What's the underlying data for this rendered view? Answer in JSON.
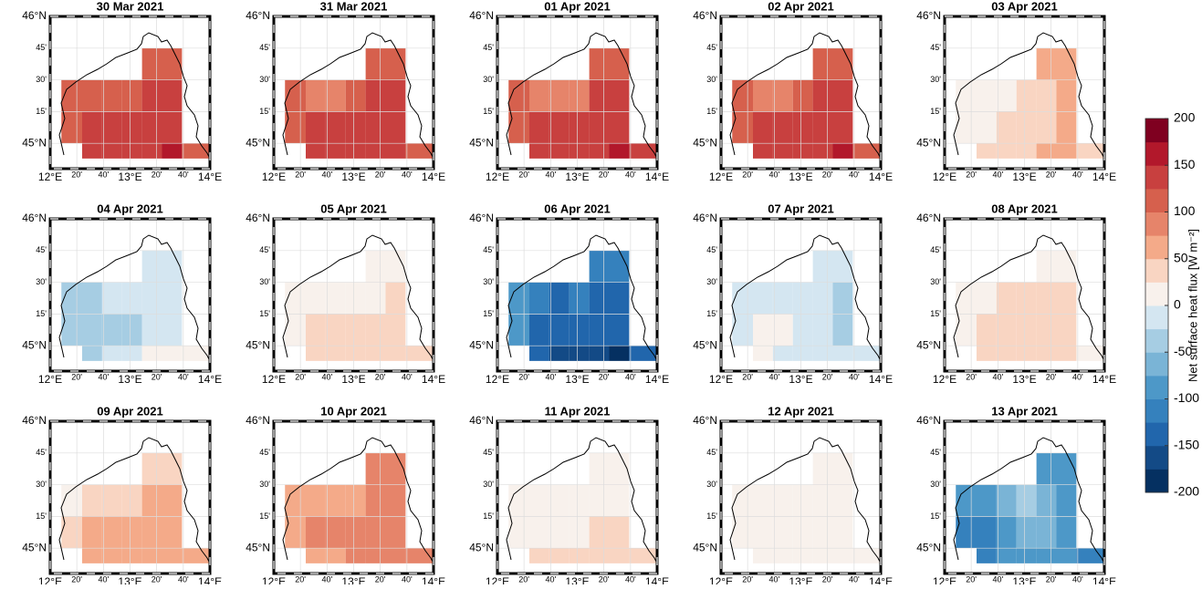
{
  "chart_data": {
    "type": "map",
    "xlim": [
      12,
      14
    ],
    "ylim": [
      44.8,
      46
    ],
    "lon_edges": [
      12.14,
      12.4,
      12.65,
      12.9,
      13.15,
      13.4,
      13.65,
      14.0
    ],
    "lat_edges": [
      45.75,
      45.5,
      45.25,
      45.0,
      44.88
    ],
    "lat_ticks": [
      {
        "value": 46,
        "label": "46°N"
      },
      {
        "value": 45.75,
        "label": "45'"
      },
      {
        "value": 45.5,
        "label": "30'"
      },
      {
        "value": 45.25,
        "label": "15'"
      },
      {
        "value": 45,
        "label": "45°N"
      }
    ],
    "lon_ticks": [
      {
        "value": 12,
        "label": "12°E"
      },
      {
        "value": 12.333,
        "label": "20'"
      },
      {
        "value": 12.667,
        "label": "40'"
      },
      {
        "value": 13,
        "label": "13°E"
      },
      {
        "value": 13.333,
        "label": "20'"
      },
      {
        "value": 13.667,
        "label": "40'"
      },
      {
        "value": 14,
        "label": "14°E"
      }
    ],
    "clim": [
      -200,
      200
    ],
    "cticks": [
      200,
      150,
      100,
      50,
      0,
      -50,
      -100,
      -150,
      -200
    ],
    "colormap": [
      "#053061",
      "#134a86",
      "#2166ac",
      "#3581bd",
      "#4d98c8",
      "#7ab4d6",
      "#a6cde3",
      "#d4e6f1",
      "#f8f1ec",
      "#f9d5c2",
      "#f4aa89",
      "#e6846a",
      "#d6604d",
      "#c8403f",
      "#b2182b",
      "#7f0020"
    ],
    "colorbar_label": "Net surface heat flux  [W m⁻²]",
    "panels": [
      {
        "title": "30 Mar 2021",
        "cells": [
          [
            null,
            null,
            null,
            null,
            120,
            120,
            null
          ],
          [
            110,
            110,
            110,
            110,
            140,
            145,
            null
          ],
          [
            120,
            140,
            140,
            140,
            145,
            140,
            null
          ],
          [
            null,
            140,
            130,
            140,
            140,
            150,
            120
          ]
        ]
      },
      {
        "title": "31 Mar 2021",
        "cells": [
          [
            null,
            null,
            null,
            null,
            120,
            120,
            null
          ],
          [
            100,
            95,
            80,
            100,
            130,
            130,
            null
          ],
          [
            110,
            140,
            140,
            140,
            140,
            140,
            null
          ],
          [
            null,
            140,
            140,
            140,
            140,
            140,
            120
          ]
        ]
      },
      {
        "title": "01 Apr 2021",
        "cells": [
          [
            null,
            null,
            null,
            null,
            120,
            120,
            null
          ],
          [
            100,
            90,
            80,
            90,
            130,
            130,
            null
          ],
          [
            110,
            130,
            130,
            140,
            140,
            140,
            null
          ],
          [
            null,
            130,
            130,
            130,
            130,
            150,
            140
          ]
        ]
      },
      {
        "title": "02 Apr 2021",
        "cells": [
          [
            null,
            null,
            null,
            null,
            120,
            120,
            null
          ],
          [
            100,
            90,
            80,
            100,
            140,
            140,
            null
          ],
          [
            110,
            140,
            140,
            140,
            145,
            140,
            null
          ],
          [
            null,
            140,
            140,
            140,
            140,
            150,
            120
          ]
        ]
      },
      {
        "title": "03 Apr 2021",
        "cells": [
          [
            null,
            null,
            null,
            null,
            50,
            50,
            null
          ],
          [
            10,
            20,
            20,
            30,
            40,
            60,
            null
          ],
          [
            5,
            20,
            30,
            40,
            40,
            60,
            null
          ],
          [
            null,
            30,
            40,
            40,
            50,
            60,
            30
          ]
        ]
      },
      {
        "title": "04 Apr 2021",
        "cells": [
          [
            null,
            null,
            null,
            null,
            -20,
            -20,
            null
          ],
          [
            -40,
            -30,
            -20,
            -20,
            -20,
            -10,
            null
          ],
          [
            -40,
            -40,
            -30,
            -30,
            -20,
            -10,
            null
          ],
          [
            null,
            -30,
            -20,
            -20,
            0,
            10,
            10
          ]
        ]
      },
      {
        "title": "05 Apr 2021",
        "cells": [
          [
            null,
            null,
            null,
            null,
            20,
            20,
            null
          ],
          [
            0,
            0,
            10,
            10,
            20,
            30,
            null
          ],
          [
            10,
            30,
            30,
            30,
            30,
            40,
            null
          ],
          [
            null,
            40,
            40,
            40,
            40,
            40,
            40
          ]
        ]
      },
      {
        "title": "06 Apr 2021",
        "cells": [
          [
            null,
            null,
            null,
            null,
            -110,
            -110,
            null
          ],
          [
            -100,
            -120,
            -130,
            -120,
            -130,
            -140,
            null
          ],
          [
            -100,
            -150,
            -150,
            -140,
            -140,
            -150,
            null
          ],
          [
            null,
            -150,
            -160,
            -160,
            -170,
            -190,
            -150
          ]
        ]
      },
      {
        "title": "07 Apr 2021",
        "cells": [
          [
            null,
            null,
            null,
            null,
            -10,
            -10,
            null
          ],
          [
            -10,
            -10,
            -10,
            -10,
            -20,
            -30,
            null
          ],
          [
            -10,
            10,
            0,
            -10,
            -20,
            -30,
            null
          ],
          [
            null,
            0,
            -10,
            -10,
            -10,
            -10,
            -20
          ]
        ]
      },
      {
        "title": "08 Apr 2021",
        "cells": [
          [
            null,
            null,
            null,
            null,
            20,
            20,
            null
          ],
          [
            10,
            20,
            30,
            30,
            30,
            40,
            null
          ],
          [
            20,
            40,
            40,
            40,
            30,
            30,
            null
          ],
          [
            null,
            30,
            30,
            30,
            30,
            30,
            20
          ]
        ]
      },
      {
        "title": "09 Apr 2021",
        "cells": [
          [
            null,
            null,
            null,
            null,
            30,
            30,
            null
          ],
          [
            20,
            30,
            40,
            40,
            50,
            50,
            null
          ],
          [
            30,
            50,
            60,
            60,
            60,
            60,
            null
          ],
          [
            null,
            60,
            60,
            70,
            60,
            60,
            60
          ]
        ]
      },
      {
        "title": "10 Apr 2021",
        "cells": [
          [
            null,
            null,
            null,
            null,
            80,
            80,
            null
          ],
          [
            60,
            60,
            70,
            70,
            80,
            80,
            null
          ],
          [
            60,
            80,
            80,
            90,
            90,
            80,
            null
          ],
          [
            null,
            70,
            70,
            80,
            80,
            80,
            80
          ]
        ]
      },
      {
        "title": "11 Apr 2021",
        "cells": [
          [
            null,
            null,
            null,
            null,
            10,
            10,
            null
          ],
          [
            0,
            5,
            10,
            10,
            20,
            20,
            null
          ],
          [
            0,
            20,
            20,
            20,
            30,
            30,
            null
          ],
          [
            null,
            30,
            30,
            40,
            40,
            40,
            40
          ]
        ]
      },
      {
        "title": "12 Apr 2021",
        "cells": [
          [
            null,
            null,
            null,
            null,
            10,
            10,
            null
          ],
          [
            5,
            5,
            10,
            10,
            10,
            10,
            null
          ],
          [
            5,
            10,
            10,
            15,
            15,
            15,
            null
          ],
          [
            null,
            20,
            20,
            20,
            20,
            20,
            20
          ]
        ]
      },
      {
        "title": "13 Apr 2021",
        "cells": [
          [
            null,
            null,
            null,
            null,
            -80,
            -80,
            null
          ],
          [
            -100,
            -90,
            -60,
            -50,
            -70,
            -80,
            null
          ],
          [
            -110,
            -120,
            -90,
            -70,
            -70,
            -80,
            null
          ],
          [
            null,
            -110,
            -100,
            -90,
            -90,
            -100,
            -120
          ]
        ]
      }
    ]
  }
}
